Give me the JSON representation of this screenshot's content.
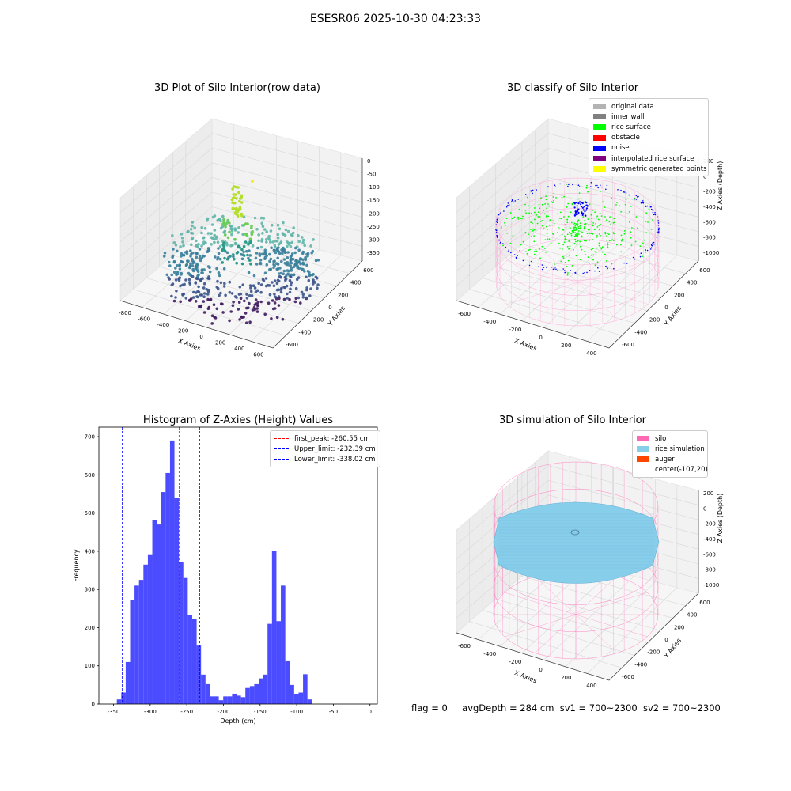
{
  "figure": {
    "suptitle": "ESESR06 2025-10-30 04:23:33",
    "footer": {
      "flag": "flag = 0",
      "avg_depth": "avgDepth = 284 cm",
      "sv1": "sv1 = 700~2300",
      "sv2": "sv2 = 700~2300"
    }
  },
  "panels": {
    "raw": {
      "title": "3D Plot of Silo Interior(row data)",
      "xlabel": "X Axies",
      "ylabel": "Y Axies",
      "zlabel": "Z Axies (Depth)",
      "xticks": [
        "-800",
        "-600",
        "-400",
        "-200",
        "0",
        "200",
        "400",
        "600"
      ],
      "yticks": [
        "-600",
        "-400",
        "-200",
        "0",
        "200",
        "400",
        "600"
      ],
      "zticks": [
        "0",
        "-50",
        "-100",
        "-150",
        "-200",
        "-250",
        "-300",
        "-350"
      ]
    },
    "classify": {
      "title": "3D classify of Silo Interior",
      "xlabel": "X Axies",
      "ylabel": "Y Axies",
      "zlabel": "Z Axies (Depth)",
      "xticks": [
        "-600",
        "-400",
        "-200",
        "0",
        "200",
        "400"
      ],
      "yticks": [
        "-600",
        "-400",
        "-200",
        "0",
        "200",
        "400",
        "600"
      ],
      "zticks": [
        "200",
        "0",
        "-200",
        "-400",
        "-600",
        "-800",
        "-1000"
      ],
      "legend": [
        {
          "label": "original data",
          "color": "#b3b3b3"
        },
        {
          "label": "inner wall",
          "color": "#808080"
        },
        {
          "label": "rice surface",
          "color": "#00ff00"
        },
        {
          "label": "obstacle",
          "color": "#ff0000"
        },
        {
          "label": "noise",
          "color": "#0000ff"
        },
        {
          "label": "interpolated rice surface",
          "color": "#800080"
        },
        {
          "label": "symmetric generated points",
          "color": "#ffff00"
        }
      ]
    },
    "simulation": {
      "title": "3D simulation of Silo Interior",
      "xlabel": "X Axies",
      "ylabel": "Y Axies",
      "zlabel": "Z Axies (Depth)",
      "xticks": [
        "-600",
        "-400",
        "-200",
        "0",
        "200",
        "400"
      ],
      "yticks": [
        "-600",
        "-400",
        "-200",
        "0",
        "200",
        "400",
        "600"
      ],
      "zticks": [
        "200",
        "0",
        "-200",
        "-400",
        "-600",
        "-800",
        "-1000"
      ],
      "legend": [
        {
          "label": "silo",
          "color": "#ff69b4"
        },
        {
          "label": "rice simulation",
          "color": "#87ceeb"
        },
        {
          "label": "auger",
          "color": "#ff4500"
        },
        {
          "label": "center(-107,20)",
          "color": ""
        }
      ]
    }
  },
  "chart_data": {
    "type": "bar",
    "title": "Histogram of Z-Axies (Height) Values",
    "xlabel": "Depth (cm)",
    "ylabel": "Frequency",
    "xlim": [
      -370,
      10
    ],
    "ylim": [
      0,
      725
    ],
    "xticks": [
      -350,
      -300,
      -250,
      -200,
      -150,
      -100,
      -50,
      0
    ],
    "yticks": [
      0,
      100,
      200,
      300,
      400,
      500,
      600,
      700
    ],
    "bar_color": "#4b4bff",
    "bin_start": -345.5,
    "bin_width": 6.05,
    "values": [
      12,
      30,
      110,
      272,
      310,
      325,
      365,
      390,
      482,
      470,
      555,
      605,
      690,
      540,
      372,
      330,
      232,
      222,
      153,
      77,
      52,
      20,
      20,
      10,
      20,
      20,
      27,
      22,
      18,
      42,
      47,
      52,
      67,
      77,
      210,
      400,
      217,
      310,
      112,
      50,
      25,
      30,
      78,
      12
    ],
    "vlines": [
      {
        "x": -260.55,
        "label": "first_peak: -260.55 cm",
        "color": "#ff0000"
      },
      {
        "x": -232.39,
        "label": "Upper_limit: -232.39 cm",
        "color": "#0000ff"
      },
      {
        "x": -338.02,
        "label": "Lower_limit: -338.02 cm",
        "color": "#0000ff"
      }
    ],
    "legend_position": "upper right"
  }
}
